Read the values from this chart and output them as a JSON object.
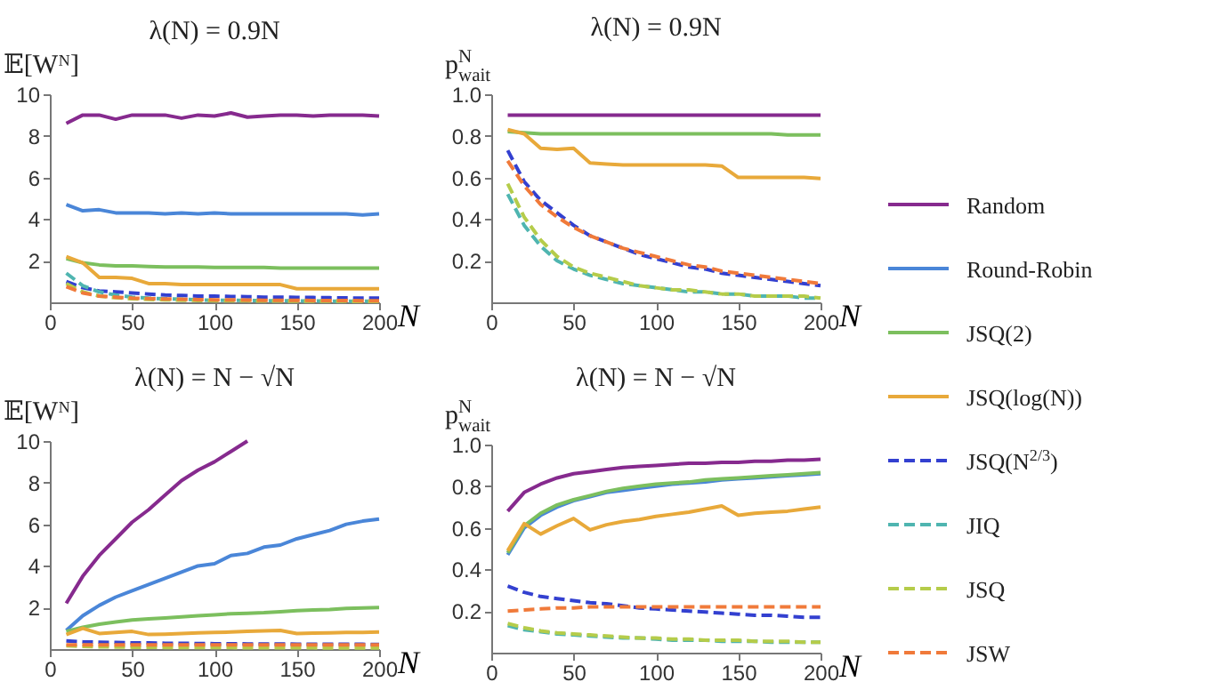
{
  "chart_data": [
    {
      "type": "line",
      "title": "λ(N) = 0.9N",
      "ylabel": "𝔼[Wᴺ]",
      "xlabel": "N",
      "xlim": [
        0,
        200
      ],
      "ylim": [
        0,
        10
      ],
      "xticks": [
        0,
        50,
        100,
        150,
        200
      ],
      "yticks": [
        2,
        4,
        6,
        8,
        10
      ],
      "legend": "right",
      "x": [
        10,
        20,
        30,
        40,
        50,
        60,
        70,
        80,
        90,
        100,
        110,
        120,
        130,
        140,
        150,
        160,
        170,
        180,
        190,
        200
      ],
      "series": [
        {
          "name": "Random",
          "color": "#862a8e",
          "line_style": "solid",
          "values": [
            8.6,
            9.0,
            9.0,
            8.8,
            9.0,
            9.0,
            9.0,
            8.85,
            9.0,
            8.95,
            9.1,
            8.9,
            8.95,
            9.0,
            9.0,
            8.95,
            9.0,
            9.0,
            9.0,
            8.95
          ]
        },
        {
          "name": "Round-Robin",
          "color": "#4a86d8",
          "line_style": "solid",
          "values": [
            4.7,
            4.4,
            4.45,
            4.3,
            4.3,
            4.3,
            4.25,
            4.3,
            4.25,
            4.3,
            4.25,
            4.25,
            4.25,
            4.25,
            4.25,
            4.25,
            4.25,
            4.25,
            4.2,
            4.25
          ]
        },
        {
          "name": "JSQ(2)",
          "color": "#7cbf5e",
          "line_style": "solid",
          "values": [
            2.1,
            1.9,
            1.8,
            1.75,
            1.75,
            1.72,
            1.7,
            1.7,
            1.7,
            1.68,
            1.68,
            1.68,
            1.68,
            1.65,
            1.65,
            1.65,
            1.65,
            1.65,
            1.65,
            1.65
          ]
        },
        {
          "name": "JSQ(log(N))",
          "color": "#e8a93a",
          "line_style": "solid",
          "values": [
            2.2,
            1.9,
            1.2,
            1.2,
            1.15,
            0.9,
            0.9,
            0.85,
            0.85,
            0.85,
            0.85,
            0.85,
            0.85,
            0.85,
            0.65,
            0.65,
            0.65,
            0.65,
            0.65,
            0.65
          ]
        },
        {
          "name": "JSQ(N$^{2/3}$)",
          "color": "#3340d0",
          "line_style": "dashed",
          "values": [
            1.0,
            0.7,
            0.55,
            0.5,
            0.45,
            0.4,
            0.35,
            0.33,
            0.3,
            0.3,
            0.28,
            0.27,
            0.25,
            0.25,
            0.24,
            0.23,
            0.22,
            0.21,
            0.2,
            0.2
          ]
        },
        {
          "name": "JIQ",
          "color": "#4fb5b0",
          "line_style": "dashed",
          "values": [
            1.4,
            0.8,
            0.5,
            0.35,
            0.25,
            0.2,
            0.17,
            0.15,
            0.12,
            0.1,
            0.1,
            0.09,
            0.08,
            0.07,
            0.07,
            0.06,
            0.06,
            0.05,
            0.05,
            0.05
          ]
        },
        {
          "name": "JSQ",
          "color": "#b5cc4a",
          "line_style": "dashed",
          "values": [
            0.9,
            0.5,
            0.3,
            0.22,
            0.17,
            0.14,
            0.12,
            0.1,
            0.09,
            0.08,
            0.07,
            0.07,
            0.06,
            0.06,
            0.05,
            0.05,
            0.05,
            0.05,
            0.04,
            0.04
          ]
        },
        {
          "name": "JSW",
          "color": "#f07a3a",
          "line_style": "dashed",
          "values": [
            0.75,
            0.45,
            0.3,
            0.25,
            0.2,
            0.18,
            0.16,
            0.15,
            0.13,
            0.12,
            0.12,
            0.11,
            0.1,
            0.1,
            0.1,
            0.09,
            0.09,
            0.09,
            0.08,
            0.08
          ]
        }
      ]
    },
    {
      "type": "line",
      "title": "λ(N) = 0.9N",
      "ylabel": "p$^{N}$$_{wait}$",
      "xlabel": "N",
      "xlim": [
        0,
        200
      ],
      "ylim": [
        0,
        1
      ],
      "xticks": [
        0,
        50,
        100,
        150,
        200
      ],
      "yticks": [
        0.2,
        0.4,
        0.6,
        0.8,
        {
          "value": 1,
          "label": "1.0"
        }
      ],
      "x": [
        10,
        20,
        30,
        40,
        50,
        60,
        70,
        80,
        90,
        100,
        110,
        120,
        130,
        140,
        150,
        160,
        170,
        180,
        190,
        200
      ],
      "series": [
        {
          "name": "Random",
          "color": "#862a8e",
          "line_style": "solid",
          "values": [
            0.9,
            0.9,
            0.9,
            0.9,
            0.9,
            0.9,
            0.9,
            0.9,
            0.9,
            0.9,
            0.9,
            0.9,
            0.9,
            0.9,
            0.9,
            0.9,
            0.9,
            0.9,
            0.9,
            0.9
          ]
        },
        {
          "name": "JSQ(2)",
          "color": "#7cbf5e",
          "line_style": "solid",
          "values": [
            0.82,
            0.815,
            0.81,
            0.81,
            0.81,
            0.81,
            0.81,
            0.81,
            0.81,
            0.81,
            0.81,
            0.81,
            0.81,
            0.81,
            0.81,
            0.81,
            0.81,
            0.805,
            0.805,
            0.805
          ]
        },
        {
          "name": "JSQ(log(N))",
          "color": "#e8a93a",
          "line_style": "solid",
          "values": [
            0.83,
            0.81,
            0.74,
            0.735,
            0.74,
            0.67,
            0.665,
            0.66,
            0.66,
            0.66,
            0.66,
            0.66,
            0.66,
            0.655,
            0.6,
            0.6,
            0.6,
            0.6,
            0.6,
            0.595
          ]
        },
        {
          "name": "JSQ(N$^{2/3}$)",
          "color": "#3340d0",
          "line_style": "dashed",
          "values": [
            0.73,
            0.58,
            0.49,
            0.43,
            0.37,
            0.32,
            0.29,
            0.26,
            0.23,
            0.21,
            0.19,
            0.17,
            0.16,
            0.14,
            0.13,
            0.12,
            0.11,
            0.1,
            0.09,
            0.08
          ]
        },
        {
          "name": "JIQ",
          "color": "#4fb5b0",
          "line_style": "dashed",
          "values": [
            0.52,
            0.37,
            0.27,
            0.2,
            0.16,
            0.13,
            0.11,
            0.09,
            0.08,
            0.07,
            0.06,
            0.05,
            0.05,
            0.04,
            0.04,
            0.03,
            0.03,
            0.03,
            0.02,
            0.02
          ]
        },
        {
          "name": "JSQ",
          "color": "#b5cc4a",
          "line_style": "dashed",
          "values": [
            0.57,
            0.41,
            0.3,
            0.22,
            0.17,
            0.14,
            0.12,
            0.1,
            0.08,
            0.07,
            0.06,
            0.06,
            0.05,
            0.04,
            0.04,
            0.03,
            0.03,
            0.03,
            0.03,
            0.02
          ]
        },
        {
          "name": "JSW",
          "color": "#f07a3a",
          "line_style": "dashed",
          "values": [
            0.68,
            0.56,
            0.47,
            0.41,
            0.36,
            0.32,
            0.29,
            0.26,
            0.24,
            0.22,
            0.2,
            0.18,
            0.17,
            0.15,
            0.14,
            0.13,
            0.12,
            0.11,
            0.1,
            0.09
          ]
        }
      ]
    },
    {
      "type": "line",
      "title": "λ(N) = N − √N",
      "ylabel": "𝔼[Wᴺ]",
      "xlabel": "N",
      "xlim": [
        0,
        200
      ],
      "ylim": [
        0,
        10
      ],
      "xticks": [
        0,
        50,
        100,
        150,
        200
      ],
      "yticks": [
        2,
        4,
        6,
        8,
        10
      ],
      "x": [
        10,
        20,
        30,
        40,
        50,
        60,
        70,
        80,
        90,
        100,
        110,
        120,
        130,
        140,
        150,
        160,
        170,
        180,
        190,
        200
      ],
      "series": [
        {
          "name": "Random",
          "color": "#862a8e",
          "line_style": "solid",
          "x": [
            10,
            20,
            30,
            40,
            50,
            60,
            70,
            80,
            90,
            100,
            110,
            120
          ],
          "values": [
            2.2,
            3.5,
            4.5,
            5.3,
            6.1,
            6.7,
            7.4,
            8.1,
            8.6,
            9.0,
            9.5,
            10.0
          ]
        },
        {
          "name": "Round-Robin",
          "color": "#4a86d8",
          "line_style": "solid",
          "values": [
            0.9,
            1.6,
            2.1,
            2.5,
            2.8,
            3.1,
            3.4,
            3.7,
            4.0,
            4.1,
            4.5,
            4.6,
            4.9,
            5.0,
            5.3,
            5.5,
            5.7,
            6.0,
            6.15,
            6.25
          ]
        },
        {
          "name": "JSQ(2)",
          "color": "#7cbf5e",
          "line_style": "solid",
          "values": [
            0.85,
            1.05,
            1.2,
            1.3,
            1.4,
            1.45,
            1.5,
            1.55,
            1.6,
            1.65,
            1.7,
            1.72,
            1.75,
            1.8,
            1.85,
            1.88,
            1.9,
            1.95,
            1.98,
            2.0
          ]
        },
        {
          "name": "JSQ(log(N))",
          "color": "#e8a93a",
          "line_style": "solid",
          "values": [
            0.7,
            1.0,
            0.75,
            0.8,
            0.85,
            0.7,
            0.72,
            0.75,
            0.78,
            0.8,
            0.82,
            0.85,
            0.88,
            0.9,
            0.75,
            0.77,
            0.78,
            0.8,
            0.8,
            0.82
          ]
        },
        {
          "name": "JSQ(N$^{2/3}$)",
          "color": "#3340d0",
          "line_style": "dashed",
          "values": [
            0.4,
            0.35,
            0.33,
            0.32,
            0.3,
            0.3,
            0.28,
            0.28,
            0.27,
            0.26,
            0.26,
            0.25,
            0.25,
            0.25,
            0.24,
            0.24,
            0.23,
            0.23,
            0.23,
            0.22
          ]
        },
        {
          "name": "JSQ",
          "color": "#b5cc4a",
          "line_style": "dashed",
          "values": [
            0.16,
            0.13,
            0.11,
            0.1,
            0.09,
            0.09,
            0.08,
            0.08,
            0.07,
            0.07,
            0.07,
            0.06,
            0.06,
            0.06,
            0.06,
            0.06,
            0.05,
            0.05,
            0.05,
            0.05
          ]
        },
        {
          "name": "JSW",
          "color": "#f07a3a",
          "line_style": "dashed",
          "values": [
            0.2,
            0.2,
            0.2,
            0.2,
            0.2,
            0.2,
            0.2,
            0.2,
            0.2,
            0.2,
            0.2,
            0.2,
            0.2,
            0.2,
            0.2,
            0.2,
            0.2,
            0.2,
            0.2,
            0.2
          ]
        }
      ]
    },
    {
      "type": "line",
      "title": "λ(N) = N − √N",
      "ylabel": "p$^{N}$$_{wait}$",
      "xlabel": "N",
      "xlim": [
        0,
        200
      ],
      "ylim": [
        0,
        1
      ],
      "xticks": [
        0,
        50,
        100,
        150,
        200
      ],
      "yticks": [
        0.2,
        0.4,
        0.6,
        0.8,
        {
          "value": 1,
          "label": "1.0"
        }
      ],
      "x": [
        10,
        20,
        30,
        40,
        50,
        60,
        70,
        80,
        90,
        100,
        110,
        120,
        130,
        140,
        150,
        160,
        170,
        180,
        190,
        200
      ],
      "series": [
        {
          "name": "Random",
          "color": "#862a8e",
          "line_style": "solid",
          "values": [
            0.68,
            0.77,
            0.81,
            0.84,
            0.86,
            0.87,
            0.88,
            0.89,
            0.895,
            0.9,
            0.905,
            0.91,
            0.91,
            0.915,
            0.915,
            0.92,
            0.92,
            0.925,
            0.925,
            0.93
          ]
        },
        {
          "name": "Round-Robin",
          "color": "#4a86d8",
          "line_style": "solid",
          "values": [
            0.47,
            0.6,
            0.66,
            0.7,
            0.73,
            0.75,
            0.77,
            0.78,
            0.79,
            0.8,
            0.81,
            0.815,
            0.82,
            0.83,
            0.835,
            0.84,
            0.845,
            0.85,
            0.855,
            0.86
          ]
        },
        {
          "name": "JSQ(2)",
          "color": "#7cbf5e",
          "line_style": "solid",
          "values": [
            0.48,
            0.61,
            0.67,
            0.71,
            0.735,
            0.755,
            0.775,
            0.79,
            0.8,
            0.81,
            0.815,
            0.82,
            0.83,
            0.835,
            0.84,
            0.845,
            0.85,
            0.855,
            0.86,
            0.865
          ]
        },
        {
          "name": "JSQ(log(N))",
          "color": "#e8a93a",
          "line_style": "solid",
          "values": [
            0.49,
            0.62,
            0.57,
            0.61,
            0.645,
            0.59,
            0.615,
            0.63,
            0.64,
            0.655,
            0.665,
            0.675,
            0.69,
            0.705,
            0.66,
            0.67,
            0.675,
            0.68,
            0.69,
            0.7
          ]
        },
        {
          "name": "JSQ(N$^{2/3}$)",
          "color": "#3340d0",
          "line_style": "dashed",
          "values": [
            0.32,
            0.29,
            0.27,
            0.26,
            0.25,
            0.24,
            0.235,
            0.225,
            0.215,
            0.21,
            0.205,
            0.2,
            0.195,
            0.19,
            0.185,
            0.18,
            0.18,
            0.175,
            0.17,
            0.17
          ]
        },
        {
          "name": "JIQ",
          "color": "#4fb5b0",
          "line_style": "dashed",
          "values": [
            0.13,
            0.11,
            0.1,
            0.09,
            0.085,
            0.08,
            0.075,
            0.07,
            0.07,
            0.065,
            0.06,
            0.06,
            0.06,
            0.055,
            0.055,
            0.055,
            0.05,
            0.05,
            0.05,
            0.05
          ]
        },
        {
          "name": "JSQ",
          "color": "#b5cc4a",
          "line_style": "dashed",
          "values": [
            0.14,
            0.12,
            0.105,
            0.095,
            0.09,
            0.085,
            0.08,
            0.075,
            0.07,
            0.07,
            0.065,
            0.065,
            0.06,
            0.06,
            0.06,
            0.055,
            0.055,
            0.055,
            0.05,
            0.05
          ]
        },
        {
          "name": "JSW",
          "color": "#f07a3a",
          "line_style": "dashed",
          "values": [
            0.2,
            0.205,
            0.21,
            0.215,
            0.215,
            0.22,
            0.22,
            0.22,
            0.22,
            0.22,
            0.22,
            0.22,
            0.22,
            0.22,
            0.22,
            0.22,
            0.22,
            0.22,
            0.22,
            0.22
          ]
        }
      ]
    }
  ]
}
